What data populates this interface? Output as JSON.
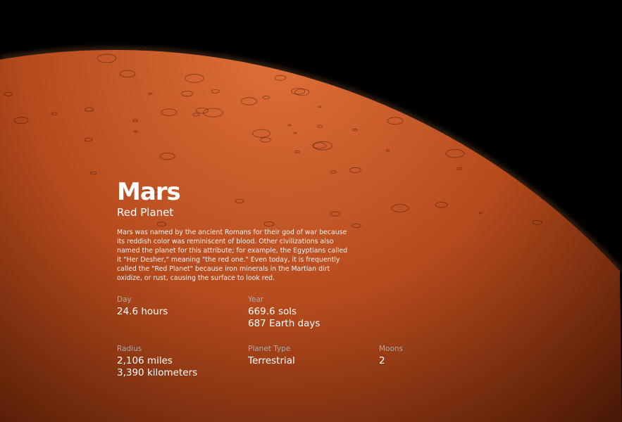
{
  "planet": {
    "name": "Mars",
    "nickname": "Red Planet",
    "description": "Mars was named by the ancient Romans for their god of war because its reddish color was reminiscent of blood. Other civilizations also named the planet for this attribute; for example, the Egyptians called it \"Her Desher,\" meaning \"the red one.\" Even today, it is frequently called the \"Red Planet\" because iron minerals in the Martian dirt oxidize, or rust, causing the surface to look red.",
    "color": "#c4521f"
  },
  "stats": {
    "day": {
      "label": "Day",
      "lines": [
        "24.6 hours"
      ]
    },
    "year": {
      "label": "Year",
      "lines": [
        "669.6 sols",
        "687 Earth days"
      ]
    },
    "radius": {
      "label": "Radius",
      "lines": [
        "2,106 miles",
        "3,390 kilometers"
      ]
    },
    "type": {
      "label": "Planet Type",
      "lines": [
        "Terrestrial"
      ]
    },
    "moons": {
      "label": "Moons",
      "lines": [
        "2"
      ]
    }
  }
}
